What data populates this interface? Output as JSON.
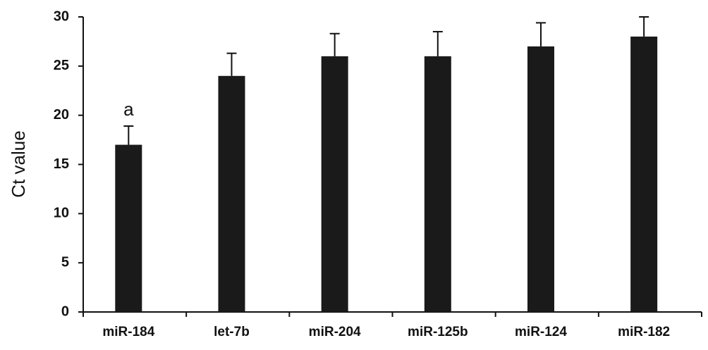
{
  "chart_data": {
    "type": "bar",
    "y_label": "Ct value",
    "categories": [
      "miR-184",
      "let-7b",
      "miR-204",
      "miR-125b",
      "miR-124",
      "miR-182"
    ],
    "values": [
      17,
      24,
      26,
      26,
      27,
      28
    ],
    "errors": [
      1.9,
      2.3,
      2.3,
      2.5,
      2.4,
      2.0
    ],
    "color": "#1a1a1a",
    "ylim": [
      0,
      30
    ],
    "yticks": [
      0,
      5,
      10,
      15,
      20,
      25,
      30
    ],
    "annotations": [
      {
        "text": "a",
        "category": "miR-184"
      }
    ]
  }
}
